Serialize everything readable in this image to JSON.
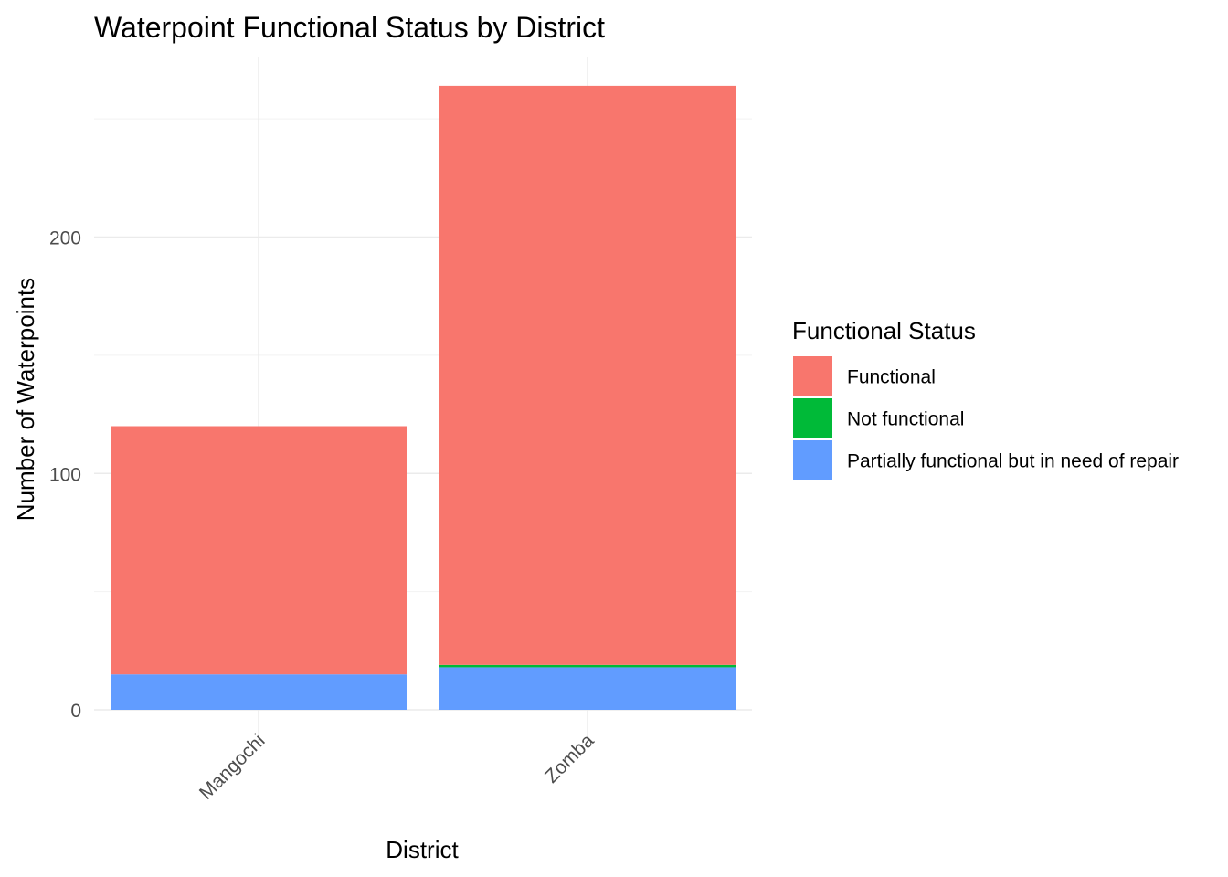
{
  "chart_data": {
    "type": "bar",
    "stacked": true,
    "title": "Waterpoint Functional Status by District",
    "xlabel": "District",
    "ylabel": "Number of Waterpoints",
    "categories": [
      "Mangochi",
      "Zomba"
    ],
    "series": [
      {
        "name": "Functional",
        "color": "#F8766D",
        "values": [
          105,
          245
        ]
      },
      {
        "name": "Not functional",
        "color": "#00BA38",
        "values": [
          0,
          1
        ]
      },
      {
        "name": "Partially functional but in need of repair",
        "color": "#619CFF",
        "values": [
          15,
          18
        ]
      }
    ],
    "stack_order_bottom_to_top": [
      "Partially functional but in need of repair",
      "Not functional",
      "Functional"
    ],
    "ylim": [
      0,
      264
    ],
    "yticks": [
      0,
      100,
      200
    ],
    "grid": true,
    "legend": {
      "title": "Functional Status",
      "position": "right"
    },
    "x_tick_rotation_deg": 45
  }
}
